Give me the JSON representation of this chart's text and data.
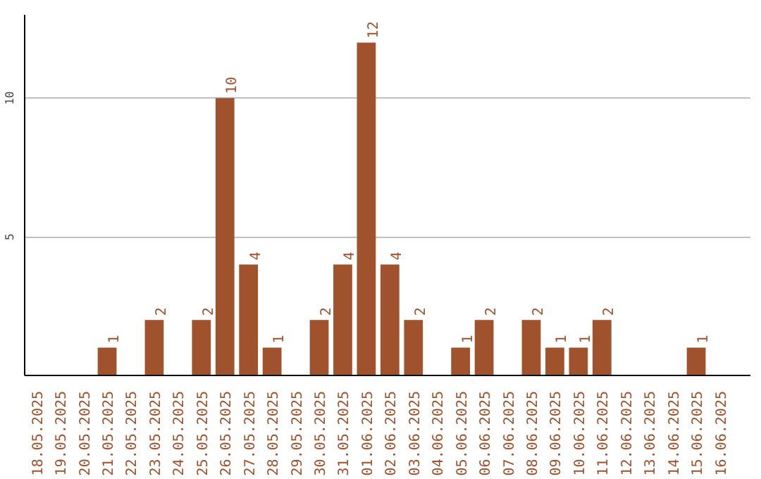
{
  "chart_data": {
    "type": "bar",
    "categories": [
      "18.05.2025",
      "19.05.2025",
      "20.05.2025",
      "21.05.2025",
      "22.05.2025",
      "23.05.2025",
      "24.05.2025",
      "25.05.2025",
      "26.05.2025",
      "27.05.2025",
      "28.05.2025",
      "29.05.2025",
      "30.05.2025",
      "31.05.2025",
      "01.06.2025",
      "02.06.2025",
      "03.06.2025",
      "04.06.2025",
      "05.06.2025",
      "06.06.2025",
      "07.06.2025",
      "08.06.2025",
      "09.06.2025",
      "10.06.2025",
      "11.06.2025",
      "12.06.2025",
      "13.06.2025",
      "14.06.2025",
      "15.06.2025",
      "16.06.2025"
    ],
    "values": [
      0,
      0,
      0,
      1,
      0,
      2,
      0,
      2,
      10,
      4,
      1,
      0,
      2,
      4,
      12,
      4,
      2,
      0,
      1,
      2,
      0,
      2,
      1,
      1,
      2,
      0,
      0,
      0,
      1,
      0
    ],
    "value_labels": [
      null,
      null,
      null,
      "1",
      null,
      "2",
      null,
      "2",
      "10",
      "4",
      "1",
      null,
      "2",
      "4",
      "12",
      "4",
      "2",
      null,
      "1",
      "2",
      null,
      "2",
      "1",
      "1",
      "2",
      null,
      null,
      null,
      "1",
      null
    ],
    "color": "#a0522d",
    "ylim": [
      0,
      13
    ],
    "yticks": [
      5,
      10
    ],
    "grid": "y"
  }
}
